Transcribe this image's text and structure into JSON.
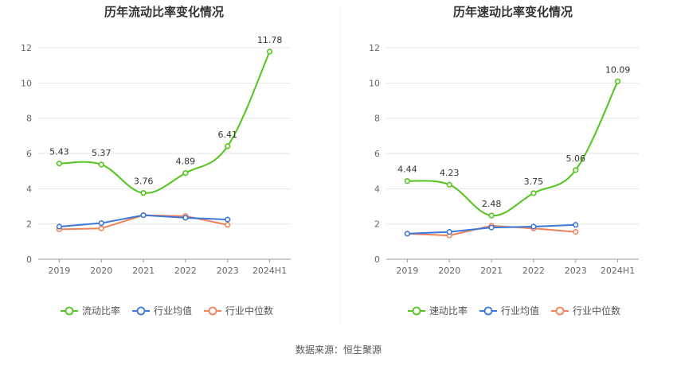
{
  "colors": {
    "primary": "#52c41a",
    "average": "#3c78d8",
    "median": "#f0825a",
    "grid": "#e6e6e6",
    "axis": "#999999"
  },
  "chart_data": [
    {
      "type": "line",
      "title": "历年流动比率变化情况",
      "categories": [
        "2019",
        "2020",
        "2021",
        "2022",
        "2023",
        "2024H1"
      ],
      "ylim": [
        0,
        12
      ],
      "yticks": [
        0,
        2,
        4,
        6,
        8,
        10,
        12
      ],
      "grid": true,
      "legend_position": "bottom",
      "series": [
        {
          "name": "流动比率",
          "values": [
            5.43,
            5.37,
            3.76,
            4.89,
            6.41,
            11.78
          ],
          "labels": [
            "5.43",
            "5.37",
            "3.76",
            "4.89",
            "6.41",
            "11.78"
          ]
        },
        {
          "name": "行业均值",
          "values": [
            1.85,
            2.05,
            2.5,
            2.35,
            2.25,
            null
          ]
        },
        {
          "name": "行业中位数",
          "values": [
            1.7,
            1.75,
            2.5,
            2.45,
            1.95,
            null
          ]
        }
      ]
    },
    {
      "type": "line",
      "title": "历年速动比率变化情况",
      "categories": [
        "2019",
        "2020",
        "2021",
        "2022",
        "2023",
        "2024H1"
      ],
      "ylim": [
        0,
        12
      ],
      "yticks": [
        0,
        2,
        4,
        6,
        8,
        10,
        12
      ],
      "grid": true,
      "legend_position": "bottom",
      "series": [
        {
          "name": "速动比率",
          "values": [
            4.44,
            4.23,
            2.48,
            3.75,
            5.06,
            10.09
          ],
          "labels": [
            "4.44",
            "4.23",
            "2.48",
            "3.75",
            "5.06",
            "10.09"
          ]
        },
        {
          "name": "行业均值",
          "values": [
            1.45,
            1.55,
            1.8,
            1.85,
            1.95,
            null
          ]
        },
        {
          "name": "行业中位数",
          "values": [
            1.45,
            1.35,
            1.9,
            1.75,
            1.55,
            null
          ]
        }
      ]
    }
  ],
  "footer": {
    "source": "数据来源：恒生聚源"
  }
}
